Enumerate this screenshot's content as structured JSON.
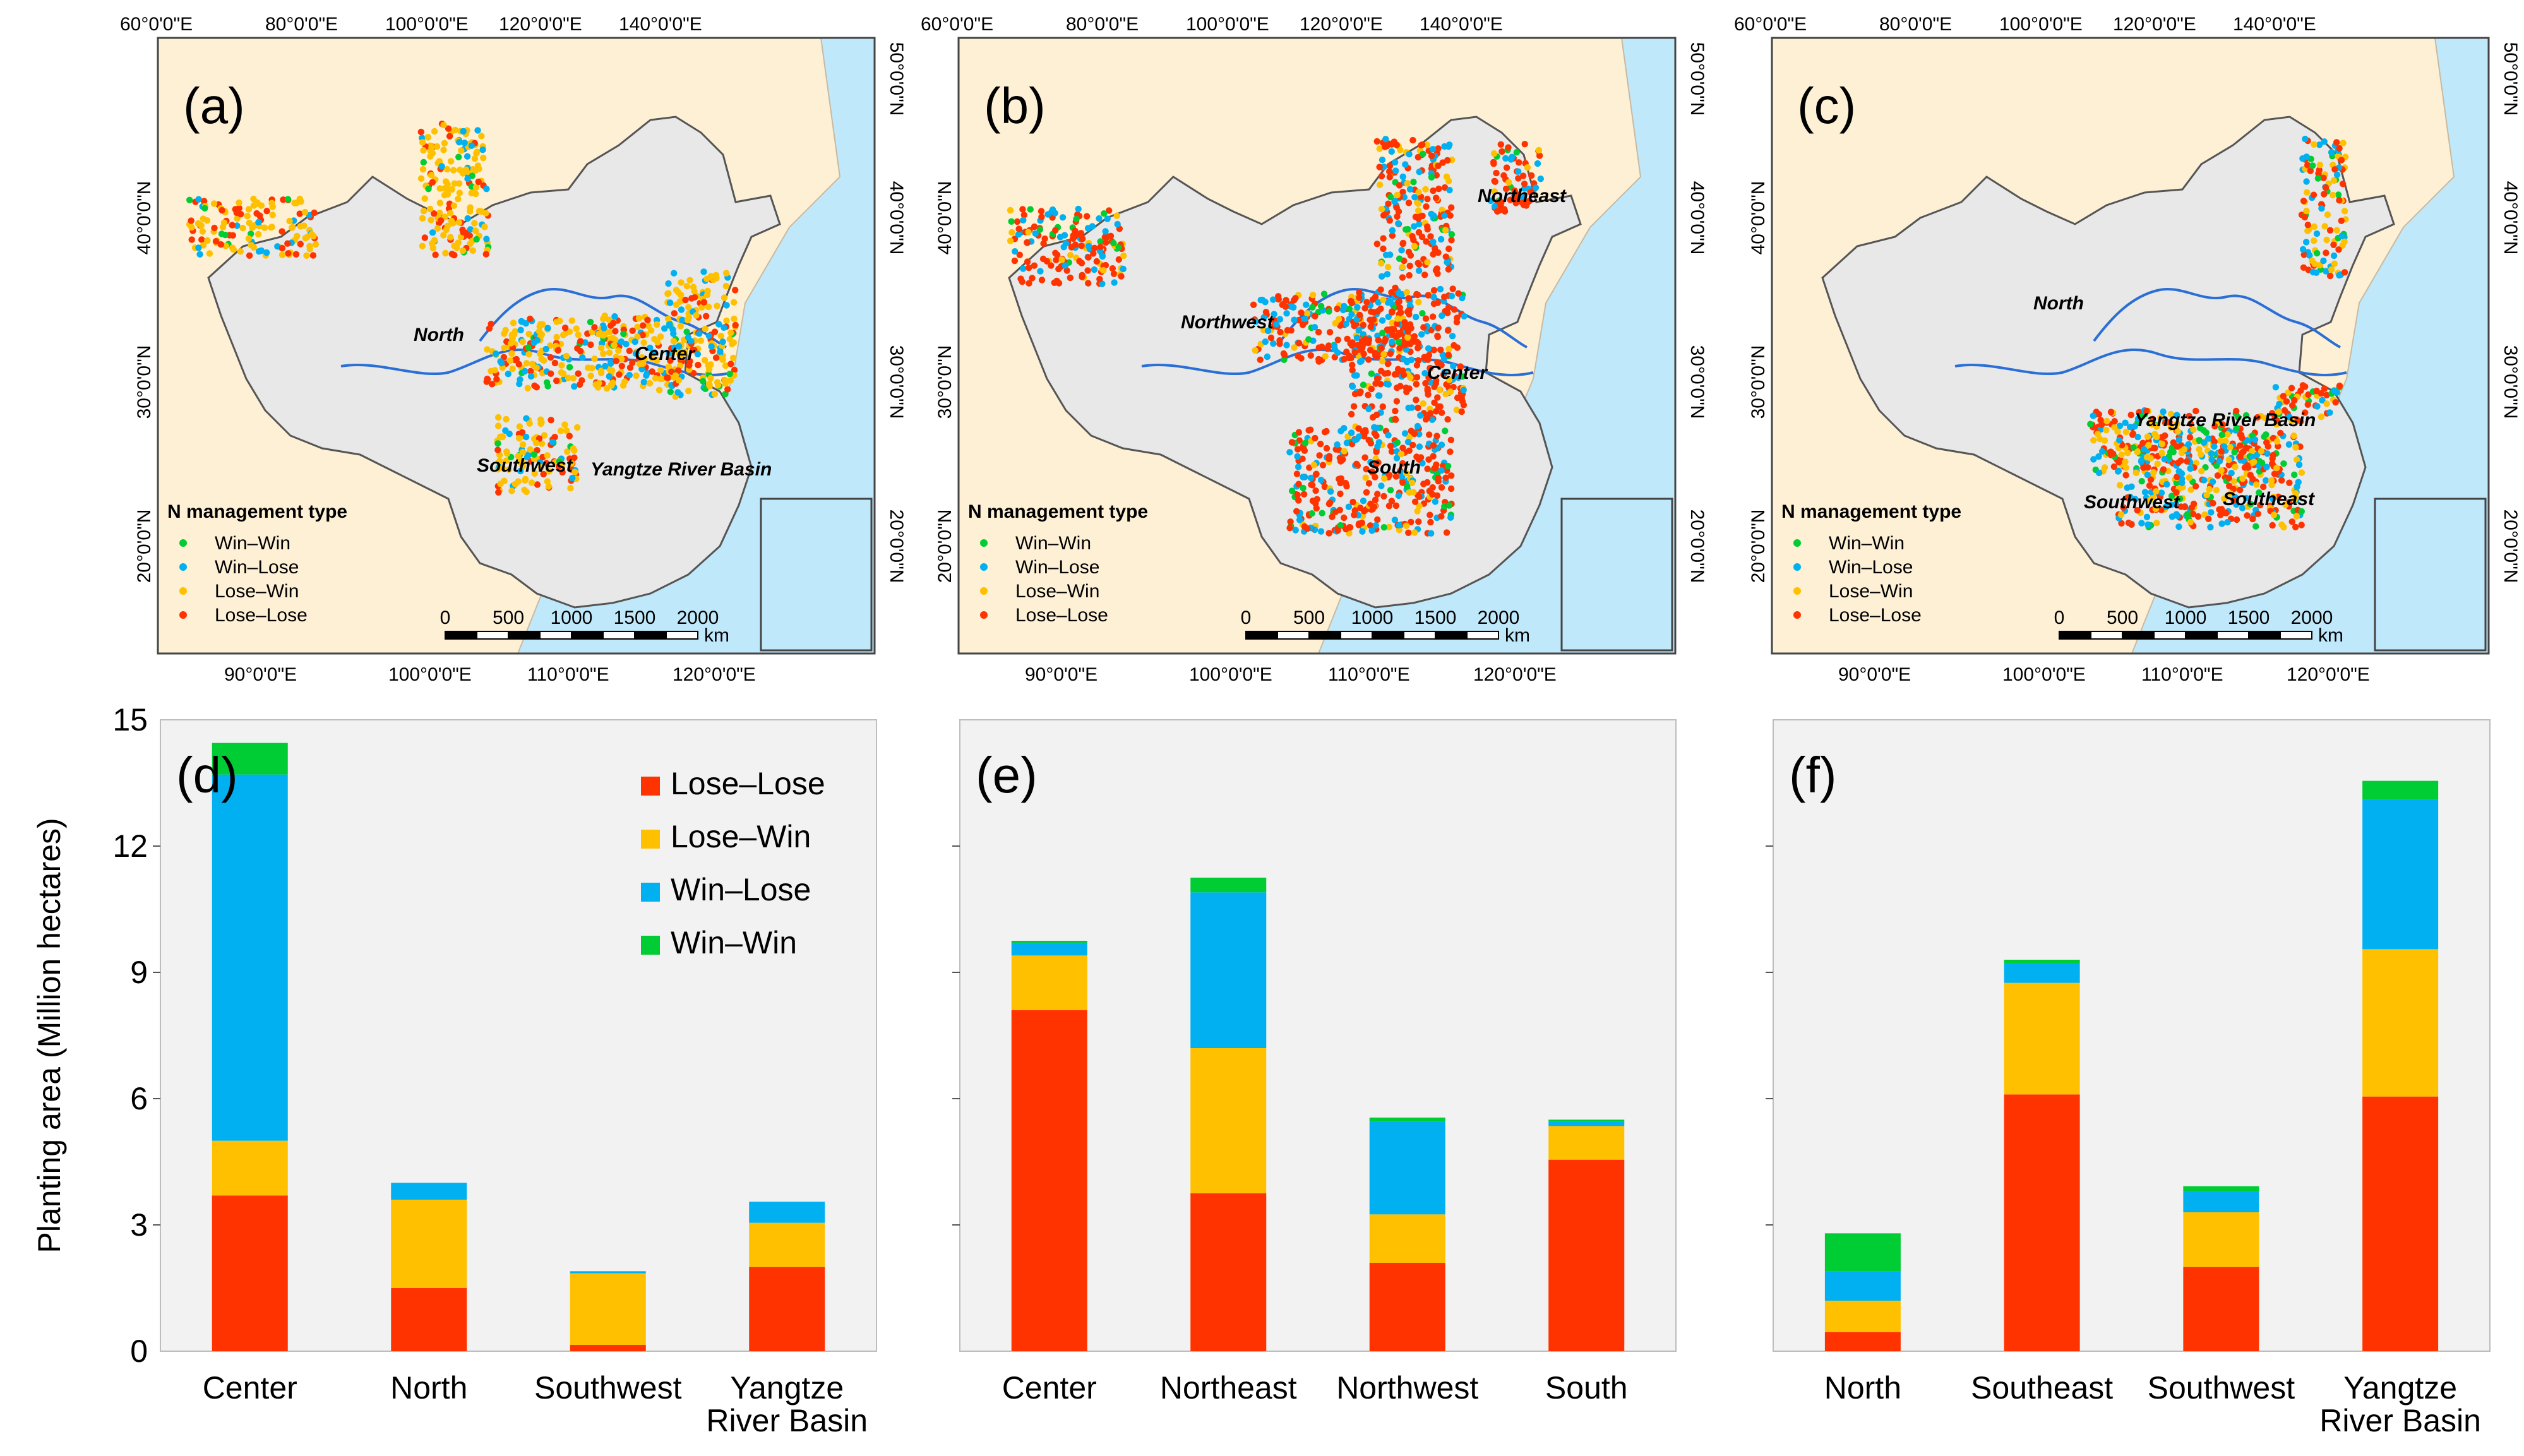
{
  "colors": {
    "lose_lose": "#ff3300",
    "lose_win": "#ffc000",
    "win_lose": "#00b0f0",
    "win_win": "#00cc33",
    "plot_bg": "#f2f2f2",
    "sea": "#bfe8fa",
    "land": "#fdf0d5",
    "china": "#e8e8e8",
    "river": "#2a6fd6"
  },
  "maps": [
    {
      "panel": "(a)",
      "top_ticks": [
        "60°0'0\"E",
        "80°0'0\"E",
        "100°0'0\"E",
        "120°0'0\"E",
        "140°0'0\"E"
      ],
      "bottom_ticks": [
        "90°0'0\"E",
        "100°0'0\"E",
        "110°0'0\"E",
        "120°0'0\"E"
      ],
      "left_ticks": [
        "40°0'0\"N",
        "30°0'0\"N",
        "20°0'0\"N"
      ],
      "right_ticks": [
        "50°0'0\"N",
        "40°0'0\"N",
        "30°0'0\"N",
        "20°0'0\"N"
      ],
      "regions": [
        "North",
        "Center",
        "Southwest",
        "Yangtze River Basin"
      ],
      "legend_title": "N management type",
      "legend": [
        "Win–Win",
        "Win–Lose",
        "Lose–Win",
        "Lose–Lose"
      ],
      "scale_labels": [
        "0",
        "500",
        "1000",
        "1500",
        "2000"
      ],
      "scale_unit": "km"
    },
    {
      "panel": "(b)",
      "top_ticks": [
        "60°0'0\"E",
        "80°0'0\"E",
        "100°0'0\"E",
        "120°0'0\"E",
        "140°0'0\"E"
      ],
      "bottom_ticks": [
        "90°0'0\"E",
        "100°0'0\"E",
        "110°0'0\"E",
        "120°0'0\"E"
      ],
      "left_ticks": [
        "40°0'0\"N",
        "30°0'0\"N",
        "20°0'0\"N"
      ],
      "right_ticks": [
        "50°0'0\"N",
        "40°0'0\"N",
        "30°0'0\"N",
        "20°0'0\"N"
      ],
      "regions": [
        "Northeast",
        "Northwest",
        "Center",
        "South"
      ],
      "legend_title": "N management type",
      "legend": [
        "Win–Win",
        "Win–Lose",
        "Lose–Win",
        "Lose–Lose"
      ],
      "scale_labels": [
        "0",
        "500",
        "1000",
        "1500",
        "2000"
      ],
      "scale_unit": "km"
    },
    {
      "panel": "(c)",
      "top_ticks": [
        "60°0'0\"E",
        "80°0'0\"E",
        "100°0'0\"E",
        "120°0'0\"E",
        "140°0'0\"E"
      ],
      "bottom_ticks": [
        "90°0'0\"E",
        "100°0'0\"E",
        "110°0'0\"E",
        "120°0'0\"E"
      ],
      "left_ticks": [
        "40°0'0\"N",
        "30°0'0\"N",
        "20°0'0\"N"
      ],
      "right_ticks": [
        "50°0'0\"N",
        "40°0'0\"N",
        "30°0'0\"N",
        "20°0'0\"N"
      ],
      "regions": [
        "North",
        "Yangtze River Basin",
        "Southwest",
        "Southeast"
      ],
      "legend_title": "N management type",
      "legend": [
        "Win–Win",
        "Win–Lose",
        "Lose–Win",
        "Lose–Lose"
      ],
      "scale_labels": [
        "0",
        "500",
        "1000",
        "1500",
        "2000"
      ],
      "scale_unit": "km"
    }
  ],
  "chart_data": [
    {
      "type": "bar",
      "stacked": true,
      "panel": "(d)",
      "ylabel": "Planting area (Million hectares)",
      "ylim": [
        0,
        15
      ],
      "yticks": [
        "0",
        "3",
        "6",
        "9",
        "12",
        "15"
      ],
      "categories": [
        "Center",
        "North",
        "Southwest",
        "Yangtze River Basin"
      ],
      "category_lines": [
        [
          "Center"
        ],
        [
          "North"
        ],
        [
          "Southwest"
        ],
        [
          "Yangtze",
          "River Basin"
        ]
      ],
      "legend": [
        "Lose–Lose",
        "Lose–Win",
        "Win–Lose",
        "Win–Win"
      ],
      "series": [
        {
          "name": "Lose–Lose",
          "values": [
            3.7,
            1.5,
            0.15,
            2.0
          ]
        },
        {
          "name": "Lose–Win",
          "values": [
            1.3,
            2.1,
            1.7,
            1.05
          ]
        },
        {
          "name": "Win–Lose",
          "values": [
            8.7,
            0.4,
            0.05,
            0.5
          ]
        },
        {
          "name": "Win–Win",
          "values": [
            0.75,
            0.0,
            0.0,
            0.0
          ]
        }
      ]
    },
    {
      "type": "bar",
      "stacked": true,
      "panel": "(e)",
      "ylim": [
        0,
        15
      ],
      "categories": [
        "Center",
        "Northeast",
        "Northwest",
        "South"
      ],
      "category_lines": [
        [
          "Center"
        ],
        [
          "Northeast"
        ],
        [
          "Northwest"
        ],
        [
          "South"
        ]
      ],
      "series": [
        {
          "name": "Lose–Lose",
          "values": [
            8.1,
            3.75,
            2.1,
            4.55
          ]
        },
        {
          "name": "Lose–Win",
          "values": [
            1.3,
            3.45,
            1.15,
            0.8
          ]
        },
        {
          "name": "Win–Lose",
          "values": [
            0.3,
            3.7,
            2.2,
            0.1
          ]
        },
        {
          "name": "Win–Win",
          "values": [
            0.05,
            0.35,
            0.1,
            0.05
          ]
        }
      ]
    },
    {
      "type": "bar",
      "stacked": true,
      "panel": "(f)",
      "ylim": [
        0,
        15
      ],
      "categories": [
        "North",
        "Southeast",
        "Southwest",
        "Yangtze River Basin"
      ],
      "category_lines": [
        [
          "North"
        ],
        [
          "Southeast"
        ],
        [
          "Southwest"
        ],
        [
          "Yangtze",
          "River Basin"
        ]
      ],
      "series": [
        {
          "name": "Lose–Lose",
          "values": [
            0.45,
            6.1,
            2.0,
            6.05
          ]
        },
        {
          "name": "Lose–Win",
          "values": [
            0.75,
            2.65,
            1.3,
            3.5
          ]
        },
        {
          "name": "Win–Lose",
          "values": [
            0.7,
            0.45,
            0.5,
            3.55
          ]
        },
        {
          "name": "Win–Win",
          "values": [
            0.9,
            0.1,
            0.12,
            0.45
          ]
        }
      ]
    }
  ]
}
